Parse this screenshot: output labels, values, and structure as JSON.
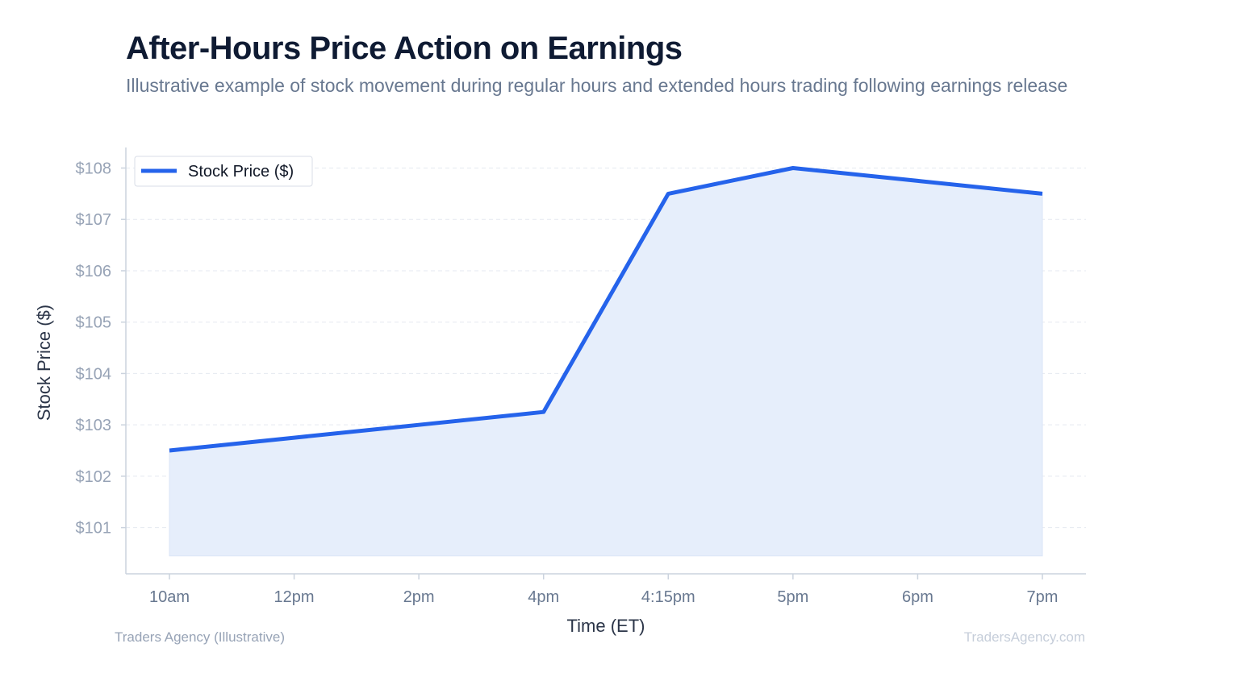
{
  "title": "After-Hours Price Action on Earnings",
  "subtitle": "Illustrative example of stock movement during regular hours and extended hours trading following earnings release",
  "footer": {
    "source": "Traders Agency (Illustrative)",
    "watermark": "TradersAgency.com"
  },
  "colors": {
    "line": "#2563eb",
    "fill": "#e6eefb",
    "grid": "#e5e9f0",
    "axis": "#cbd3de"
  },
  "chart_data": {
    "type": "area",
    "title": "After-Hours Price Action on Earnings",
    "xlabel": "Time (ET)",
    "ylabel": "Stock Price ($)",
    "categories": [
      "10am",
      "12pm",
      "2pm",
      "4pm",
      "4:15pm",
      "5pm",
      "6pm",
      "7pm"
    ],
    "series": [
      {
        "name": "Stock Price ($)",
        "values": [
          102.5,
          102.75,
          103.0,
          103.25,
          107.5,
          108.0,
          107.75,
          107.5
        ]
      }
    ],
    "yticks": [
      101,
      102,
      103,
      104,
      105,
      106,
      107,
      108
    ],
    "ytick_labels": [
      "$101",
      "$102",
      "$103",
      "$104",
      "$105",
      "$106",
      "$107",
      "$108"
    ],
    "ylim": [
      100.1,
      108.4
    ],
    "fill_baseline": 100.45,
    "grid": true,
    "legend_position": "top-left"
  }
}
